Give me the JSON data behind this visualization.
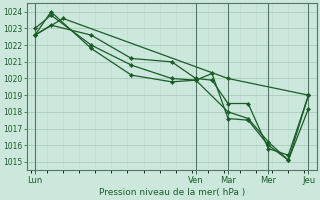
{
  "bg_color": "#cce8dc",
  "grid_color_major": "#aaccbb",
  "grid_color_minor": "#bbdacc",
  "line_color": "#1a5c28",
  "marker_color": "#1a5c28",
  "xlabel": "Pression niveau de la mer( hPa )",
  "ylim": [
    1014.5,
    1024.5
  ],
  "xlim": [
    -2,
    142
  ],
  "xtick_labels": [
    "Lun",
    "Ven",
    "Mar",
    "Mer",
    "Jeu"
  ],
  "xtick_positions": [
    2,
    82,
    98,
    118,
    138
  ],
  "ytick_values": [
    1015,
    1016,
    1017,
    1018,
    1019,
    1020,
    1021,
    1022,
    1023,
    1024
  ],
  "vline_positions": [
    2,
    82,
    98,
    118,
    138
  ],
  "series": [
    {
      "x": [
        2,
        16,
        98,
        138
      ],
      "y": [
        1022.6,
        1023.6,
        1020.0,
        1019.0
      ]
    },
    {
      "x": [
        2,
        10,
        30,
        50,
        70,
        82,
        98,
        108,
        118,
        128,
        138
      ],
      "y": [
        1022.6,
        1024.0,
        1021.8,
        1020.2,
        1019.8,
        1019.9,
        1018.0,
        1017.6,
        1016.2,
        1015.1,
        1018.2
      ]
    },
    {
      "x": [
        2,
        10,
        30,
        50,
        70,
        82,
        90,
        98,
        108,
        118,
        128,
        138
      ],
      "y": [
        1023.0,
        1023.8,
        1022.0,
        1020.8,
        1020.0,
        1019.9,
        1020.3,
        1017.6,
        1017.5,
        1016.0,
        1015.1,
        1019.0
      ]
    },
    {
      "x": [
        2,
        10,
        30,
        50,
        70,
        82,
        90,
        98,
        108,
        118,
        128,
        138
      ],
      "y": [
        1022.6,
        1023.2,
        1022.6,
        1021.2,
        1021.0,
        1020.0,
        1019.9,
        1018.5,
        1018.5,
        1015.8,
        1015.4,
        1019.0
      ]
    }
  ],
  "figsize": [
    3.2,
    2.0
  ],
  "dpi": 100
}
